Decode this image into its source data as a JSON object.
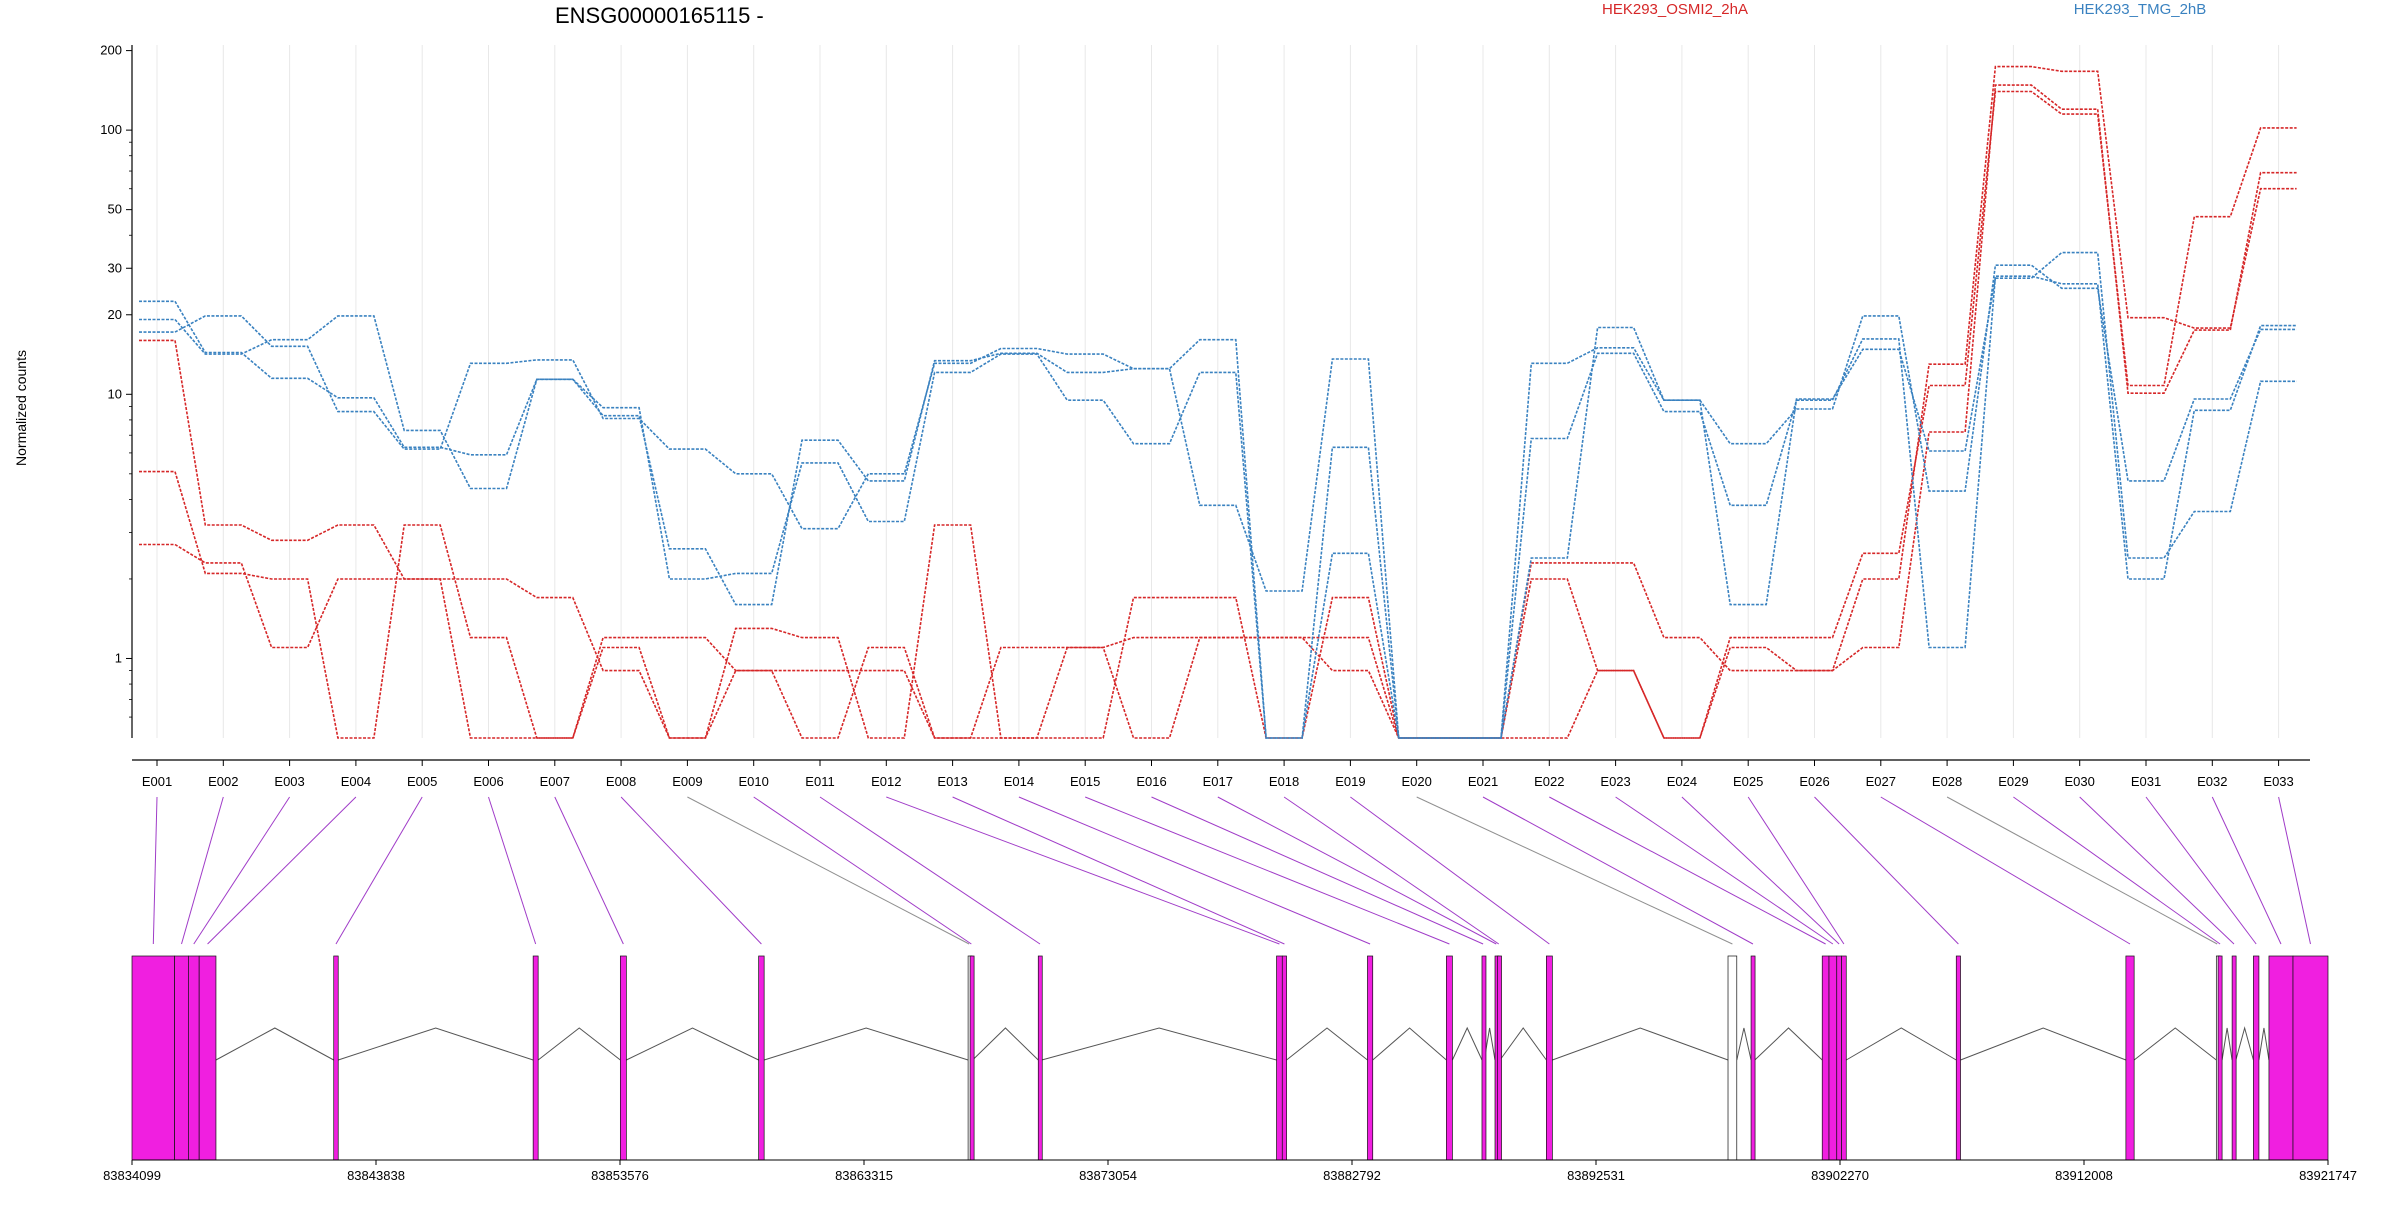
{
  "chart_data": {
    "type": "line",
    "title": "ENSG00000165115 -",
    "ylabel": "Normalized counts",
    "yscale": "log",
    "ylim": [
      0.5,
      210
    ],
    "yticks": [
      {
        "value": 1,
        "label": "1"
      },
      {
        "value": 10,
        "label": "10"
      },
      {
        "value": 20,
        "label": "20"
      },
      {
        "value": 30,
        "label": "30"
      },
      {
        "value": 50,
        "label": "50"
      },
      {
        "value": 100,
        "label": "100"
      },
      {
        "value": 200,
        "label": "200"
      }
    ],
    "grid": "vertical",
    "legend_position": "top-right",
    "categories": [
      "E001",
      "E002",
      "E003",
      "E004",
      "E005",
      "E006",
      "E007",
      "E008",
      "E009",
      "E010",
      "E011",
      "E012",
      "E013",
      "E014",
      "E015",
      "E016",
      "E017",
      "E018",
      "E019",
      "E020",
      "E021",
      "E022",
      "E023",
      "E024",
      "E025",
      "E026",
      "E027",
      "E028",
      "E029",
      "E030",
      "E031",
      "E032",
      "E033"
    ],
    "legend": [
      {
        "label": "HEK293_OSMI2_2hA",
        "color": "#d62728"
      },
      {
        "label": "HEK293_TMG_2hB",
        "color": "#3a82c0"
      }
    ],
    "series": [
      {
        "group": "HEK293_OSMI2_2hA",
        "color": "#d62728",
        "values": [
          16,
          3.2,
          2.8,
          3.2,
          2.0,
          2.0,
          1.7,
          0.9,
          0.5,
          1.3,
          1.2,
          0.5,
          3.2,
          0.5,
          0.5,
          1.7,
          1.7,
          0.5,
          1.7,
          0.5,
          0.5,
          2.0,
          0.9,
          0.5,
          1.2,
          1.2,
          2.5,
          10.8,
          140,
          115,
          10.8,
          47,
          102
        ]
      },
      {
        "group": "HEK293_OSMI2_2hA",
        "color": "#d62728",
        "values": [
          5.1,
          2.1,
          2.0,
          0.5,
          3.2,
          1.2,
          0.5,
          1.2,
          1.2,
          0.9,
          0.9,
          0.9,
          0.5,
          1.1,
          1.1,
          1.2,
          1.2,
          1.2,
          1.2,
          0.5,
          0.5,
          2.3,
          2.3,
          1.2,
          0.9,
          0.9,
          2.0,
          13,
          174,
          167,
          19.5,
          17.8,
          60
        ]
      },
      {
        "group": "HEK293_OSMI2_2hA",
        "color": "#d62728",
        "values": [
          2.7,
          2.3,
          1.1,
          2.0,
          2.0,
          0.5,
          0.5,
          1.1,
          0.5,
          0.9,
          0.5,
          1.1,
          0.5,
          0.5,
          1.1,
          0.5,
          1.2,
          1.2,
          0.9,
          0.5,
          0.5,
          0.5,
          0.9,
          0.5,
          1.1,
          0.9,
          1.1,
          7.2,
          148,
          120,
          10.1,
          17.5,
          69
        ]
      },
      {
        "group": "HEK293_TMG_2hB",
        "color": "#3a82c0",
        "values": [
          17.2,
          19.8,
          15.2,
          8.6,
          6.2,
          13.1,
          13.5,
          8.1,
          6.2,
          5.0,
          3.1,
          5.0,
          13.1,
          14.9,
          14.2,
          12.5,
          3.8,
          1.8,
          13.6,
          0.5,
          0.5,
          13.1,
          15.0,
          9.5,
          6.5,
          8.8,
          19.8,
          4.3,
          30.8,
          25.2,
          4.7,
          9.6,
          17.6
        ]
      },
      {
        "group": "HEK293_TMG_2hB",
        "color": "#3a82c0",
        "values": [
          19.2,
          14.2,
          16.1,
          19.8,
          7.3,
          4.4,
          11.4,
          8.3,
          2.6,
          1.6,
          6.7,
          4.7,
          13.4,
          14.3,
          12.1,
          12.5,
          16.1,
          0.5,
          6.3,
          0.5,
          0.5,
          2.4,
          17.9,
          9.5,
          1.6,
          9.6,
          14.8,
          6.1,
          27.5,
          34.4,
          2.4,
          3.6,
          11.2
        ]
      },
      {
        "group": "HEK293_TMG_2hB",
        "color": "#3a82c0",
        "values": [
          22.5,
          14.4,
          11.5,
          9.7,
          6.3,
          5.9,
          11.4,
          8.9,
          2.0,
          2.1,
          5.5,
          3.3,
          12.1,
          14.2,
          9.5,
          6.5,
          12.1,
          0.5,
          2.5,
          0.5,
          0.5,
          6.8,
          14.3,
          8.6,
          3.8,
          9.5,
          16.2,
          1.1,
          28.0,
          26.2,
          2.0,
          8.7,
          18.2
        ]
      }
    ],
    "genomic_track": {
      "coordinate_labels": [
        "83834099",
        "83843838",
        "83853576",
        "83863315",
        "83873054",
        "83882792",
        "83892531",
        "83902270",
        "83912008",
        "83921747"
      ],
      "coordinate_values": [
        83834099,
        83843838,
        83853576,
        83863315,
        83873054,
        83882792,
        83892531,
        83902270,
        83912008,
        83921747
      ],
      "exon_color": "#f01fe0",
      "exons": [
        {
          "id": "E001",
          "start": 83834099,
          "end": 83835800
        },
        {
          "id": "E002",
          "start": 83835800,
          "end": 83836350
        },
        {
          "id": "E003",
          "start": 83836350,
          "end": 83836780
        },
        {
          "id": "E004",
          "start": 83836780,
          "end": 83837450
        },
        {
          "id": "E005",
          "start": 83842150,
          "end": 83842330
        },
        {
          "id": "E006",
          "start": 83850110,
          "end": 83850310
        },
        {
          "id": "E007",
          "start": 83853590,
          "end": 83853830
        },
        {
          "id": "E008",
          "start": 83859110,
          "end": 83859330
        },
        {
          "id": "E009",
          "start": 83867470,
          "end": 83867550,
          "utr": true
        },
        {
          "id": "E010",
          "start": 83867550,
          "end": 83867650
        },
        {
          "id": "E011",
          "start": 83870270,
          "end": 83870410
        },
        {
          "id": "E012",
          "start": 83879780,
          "end": 83880010
        },
        {
          "id": "E013",
          "start": 83880010,
          "end": 83880180
        },
        {
          "id": "E014",
          "start": 83883410,
          "end": 83883620
        },
        {
          "id": "E015",
          "start": 83886560,
          "end": 83886800
        },
        {
          "id": "E016",
          "start": 83887980,
          "end": 83888070
        },
        {
          "id": "E017",
          "start": 83888500,
          "end": 83888600
        },
        {
          "id": "E018",
          "start": 83888600,
          "end": 83888700
        },
        {
          "id": "E019",
          "start": 83890550,
          "end": 83890790
        },
        {
          "id": "E020",
          "start": 83897800,
          "end": 83898150,
          "utr": true
        },
        {
          "id": "E021",
          "start": 83898720,
          "end": 83898870
        },
        {
          "id": "E022",
          "start": 83901560,
          "end": 83901830
        },
        {
          "id": "E023",
          "start": 83901830,
          "end": 83902140
        },
        {
          "id": "E024",
          "start": 83902140,
          "end": 83902330
        },
        {
          "id": "E025",
          "start": 83902330,
          "end": 83902520
        },
        {
          "id": "E026",
          "start": 83906910,
          "end": 83907080
        },
        {
          "id": "E027",
          "start": 83913680,
          "end": 83914010
        },
        {
          "id": "E028",
          "start": 83917290,
          "end": 83917360,
          "utr": true
        },
        {
          "id": "E029",
          "start": 83917360,
          "end": 83917520
        },
        {
          "id": "E030",
          "start": 83917920,
          "end": 83918070
        },
        {
          "id": "E031",
          "start": 83918770,
          "end": 83918990
        },
        {
          "id": "E032",
          "start": 83919390,
          "end": 83920350
        },
        {
          "id": "E033",
          "start": 83920350,
          "end": 83921747
        }
      ],
      "connector_colors": {
        "exon": "#a03cc8",
        "utr": "#909090"
      }
    }
  }
}
